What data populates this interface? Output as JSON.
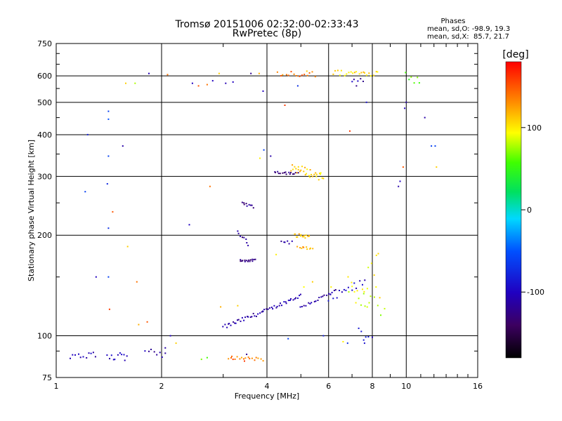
{
  "chart_data": {
    "type": "scatter",
    "title": "Tromsø 20151006 02:32:00-02:33:43",
    "subtitle": "RwPretec (8p)",
    "xlabel": "Frequency [MHz]",
    "ylabel": "Stationary phase Virtual Height [km]",
    "xscale": "log",
    "yscale": "log",
    "xlim": [
      1,
      16
    ],
    "ylim": [
      75,
      750
    ],
    "xticks": [
      1,
      2,
      4,
      6,
      8,
      10,
      16
    ],
    "xtick_labels": [
      "1",
      "2",
      "4",
      "6",
      "8",
      "10",
      "16"
    ],
    "yticks": [
      75,
      100,
      200,
      300,
      400,
      500,
      600,
      750
    ],
    "ytick_labels": [
      "75",
      "100",
      "200",
      "300",
      "400",
      "500",
      "600",
      "750"
    ],
    "grid": true,
    "phase_info": {
      "heading": "Phases",
      "line1": "mean, sd,O: -98.9, 19.3",
      "line2": "mean, sd,X:  85.7, 21.7"
    },
    "colorbar": {
      "label": "[deg]",
      "min": -180,
      "max": 180,
      "ticks": [
        100,
        0,
        -100
      ],
      "tick_labels": [
        "100",
        "0",
        "-100"
      ]
    },
    "traces": [
      {
        "x": [
          3.0,
          3.9
        ],
        "y": [
          106,
          118
        ],
        "phase": -110,
        "step": 0.03,
        "jitter": 0.015
      },
      {
        "x": [
          3.9,
          5.0
        ],
        "y": [
          118,
          132
        ],
        "phase": -108,
        "step": 0.03,
        "jitter": 0.012
      },
      {
        "x": [
          5.0,
          6.3
        ],
        "y": [
          122,
          136
        ],
        "phase": -112,
        "step": 0.035,
        "jitter": 0.012
      },
      {
        "x": [
          6.0,
          7.6
        ],
        "y": [
          128,
          145
        ],
        "phase": -100,
        "step": 0.05,
        "jitter": 0.03
      },
      {
        "x": [
          3.35,
          3.7
        ],
        "y": [
          168,
          168
        ],
        "phase": -125,
        "step": 0.02,
        "jitter": 0.008
      },
      {
        "x": [
          3.4,
          3.65
        ],
        "y": [
          250,
          243
        ],
        "phase": -125,
        "step": 0.025,
        "jitter": 0.008
      },
      {
        "x": [
          3.3,
          3.55
        ],
        "y": [
          205,
          188
        ],
        "phase": -120,
        "step": 0.03,
        "jitter": 0.01
      },
      {
        "x": [
          4.2,
          4.9
        ],
        "y": [
          310,
          305
        ],
        "phase": -122,
        "step": 0.03,
        "jitter": 0.01
      },
      {
        "x": [
          4.7,
          5.8
        ],
        "y": [
          320,
          298
        ],
        "phase": 110,
        "step": 0.02,
        "jitter": 0.03
      },
      {
        "x": [
          4.8,
          5.3
        ],
        "y": [
          200,
          198
        ],
        "phase": 115,
        "step": 0.02,
        "jitter": 0.012
      },
      {
        "x": [
          4.9,
          5.4
        ],
        "y": [
          184,
          182
        ],
        "phase": 120,
        "step": 0.03,
        "jitter": 0.008
      },
      {
        "x": [
          4.4,
          4.7
        ],
        "y": [
          192,
          190
        ],
        "phase": -115,
        "step": 0.04,
        "jitter": 0.01
      },
      {
        "x": [
          3.1,
          3.9
        ],
        "y": [
          86,
          85
        ],
        "phase": 130,
        "step": 0.04,
        "jitter": 0.012
      },
      {
        "x": [
          1.1,
          1.3
        ],
        "y": [
          86,
          88
        ],
        "phase": -105,
        "step": 0.05,
        "jitter": 0.02
      },
      {
        "x": [
          1.4,
          1.6
        ],
        "y": [
          86,
          87
        ],
        "phase": -105,
        "step": 0.04,
        "jitter": 0.03
      },
      {
        "x": [
          1.8,
          2.05
        ],
        "y": [
          92,
          88
        ],
        "phase": -108,
        "step": 0.05,
        "jitter": 0.04
      },
      {
        "x": [
          6.2,
          8.3
        ],
        "y": [
          612,
          612
        ],
        "phase": 110,
        "step": 0.04,
        "jitter": 0.02
      },
      {
        "x": [
          4.3,
          5.5
        ],
        "y": [
          610,
          608
        ],
        "phase": 140,
        "step": 0.05,
        "jitter": 0.02
      },
      {
        "x": [
          6.8,
          7.9
        ],
        "y": [
          140,
          128
        ],
        "phase": 90,
        "step": 0.03,
        "jitter": 0.08
      },
      {
        "x": [
          7.6,
          8.3
        ],
        "y": [
          145,
          165
        ],
        "phase": 100,
        "step": 0.04,
        "jitter": 0.08
      },
      {
        "x": [
          10.0,
          10.9
        ],
        "y": [
          600,
          580
        ],
        "phase": 60,
        "step": 0.05,
        "jitter": 0.04
      },
      {
        "x": [
          7.0,
          7.5
        ],
        "y": [
          570,
          560
        ],
        "phase": -110,
        "step": 0.04,
        "jitter": 0.05
      },
      {
        "x": [
          8.1,
          8.7
        ],
        "y": [
          130,
          115
        ],
        "phase": 80,
        "step": 0.06,
        "jitter": 0.05
      },
      {
        "x": [
          7.3,
          7.8
        ],
        "y": [
          105,
          98
        ],
        "phase": -90,
        "step": 0.05,
        "jitter": 0.05
      }
    ],
    "points": [
      [
        1.41,
        470,
        -60
      ],
      [
        1.41,
        445,
        -50
      ],
      [
        1.23,
        400,
        -80
      ],
      [
        1.55,
        370,
        -110
      ],
      [
        1.41,
        345,
        -60
      ],
      [
        1.4,
        285,
        -75
      ],
      [
        1.21,
        270,
        -60
      ],
      [
        1.45,
        235,
        150
      ],
      [
        1.41,
        210,
        -70
      ],
      [
        1.3,
        150,
        -100
      ],
      [
        1.41,
        150,
        -60
      ],
      [
        1.6,
        185,
        110
      ],
      [
        1.7,
        145,
        140
      ],
      [
        1.42,
        120,
        160
      ],
      [
        1.72,
        108,
        120
      ],
      [
        1.82,
        110,
        150
      ],
      [
        1.84,
        610,
        -105
      ],
      [
        1.58,
        570,
        110
      ],
      [
        1.68,
        570,
        80
      ],
      [
        2.08,
        605,
        140
      ],
      [
        2.45,
        570,
        -100
      ],
      [
        2.55,
        560,
        150
      ],
      [
        2.7,
        565,
        140
      ],
      [
        2.4,
        215,
        -100
      ],
      [
        2.75,
        280,
        140
      ],
      [
        2.8,
        580,
        -100
      ],
      [
        2.92,
        610,
        110
      ],
      [
        3.05,
        570,
        -105
      ],
      [
        3.2,
        575,
        -100
      ],
      [
        3.6,
        610,
        -120
      ],
      [
        3.8,
        610,
        120
      ],
      [
        3.9,
        540,
        -100
      ],
      [
        3.92,
        360,
        -60
      ],
      [
        3.82,
        340,
        100
      ],
      [
        4.1,
        345,
        -110
      ],
      [
        4.5,
        490,
        160
      ],
      [
        4.9,
        560,
        -70
      ],
      [
        5.2,
        620,
        110
      ],
      [
        6.9,
        410,
        160
      ],
      [
        7.7,
        500,
        -90
      ],
      [
        9.8,
        320,
        150
      ],
      [
        9.6,
        290,
        -100
      ],
      [
        9.5,
        280,
        -110
      ],
      [
        9.9,
        480,
        -100
      ],
      [
        10.0,
        500,
        -110
      ],
      [
        11.3,
        450,
        -110
      ],
      [
        11.8,
        370,
        -60
      ],
      [
        12.1,
        370,
        -60
      ],
      [
        12.2,
        320,
        110
      ],
      [
        7.6,
        95,
        -90
      ],
      [
        6.8,
        95,
        -70
      ],
      [
        4.6,
        98,
        -60
      ],
      [
        2.6,
        85,
        70
      ],
      [
        2.2,
        95,
        110
      ],
      [
        3.5,
        88,
        -120
      ],
      [
        8.0,
        99,
        -100
      ],
      [
        6.6,
        96,
        100
      ],
      [
        2.7,
        86,
        60
      ],
      [
        3.2,
        85,
        160
      ],
      [
        3.45,
        84,
        160
      ],
      [
        8.4,
        130,
        110
      ],
      [
        8.2,
        140,
        95
      ],
      [
        5.8,
        100,
        -80
      ],
      [
        4.25,
        175,
        100
      ],
      [
        6.1,
        140,
        100
      ],
      [
        5.1,
        140,
        95
      ],
      [
        5.4,
        145,
        110
      ],
      [
        2.95,
        122,
        120
      ],
      [
        3.3,
        123,
        110
      ],
      [
        2.05,
        92,
        -110
      ],
      [
        2.12,
        100,
        -100
      ]
    ]
  }
}
